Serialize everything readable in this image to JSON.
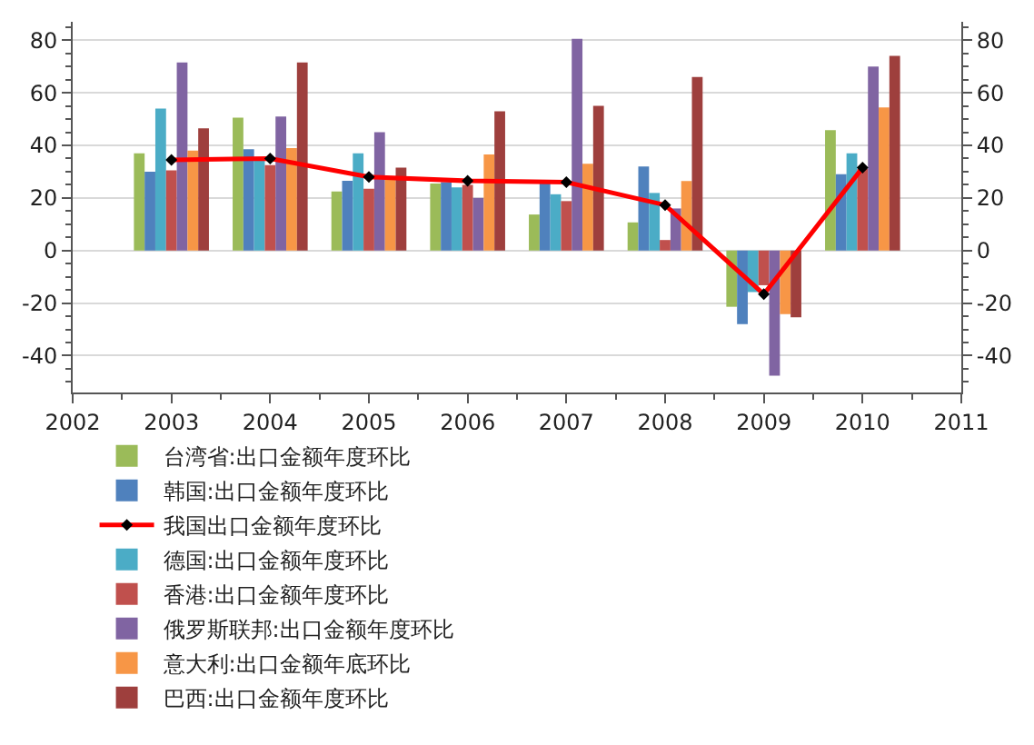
{
  "chart_data": {
    "type": "bar",
    "x": [
      2003,
      2004,
      2005,
      2006,
      2007,
      2008,
      2009,
      2010
    ],
    "series": [
      {
        "name": "台湾省:出口金额年度环比",
        "color": "#9bbb59",
        "values": [
          37,
          50.5,
          22.5,
          25.5,
          13.7,
          10.7,
          -21.4,
          45.8
        ]
      },
      {
        "name": "韩国:出口金额年度环比",
        "color": "#4f81bd",
        "values": [
          30,
          38.5,
          26.5,
          26,
          26,
          32,
          -28,
          29
        ]
      },
      {
        "name": "我国出口金额年度环比",
        "color": "#ff0000",
        "type": "line",
        "axis": "y2",
        "marker": "diamond",
        "values": [
          34.5,
          35,
          28,
          26.5,
          26,
          17.3,
          -16.6,
          31.5
        ]
      },
      {
        "name": "德国:出口金额年度环比",
        "color": "#4bacc6",
        "values": [
          54,
          35,
          37,
          24,
          21.4,
          21.9,
          -15.8,
          37
        ]
      },
      {
        "name": "香港:出口金额年度环比",
        "color": "#c0504d",
        "values": [
          30.5,
          32.5,
          23.5,
          25,
          18.8,
          4,
          -13.2,
          31
        ]
      },
      {
        "name": "俄罗斯联邦:出口金额年度环比",
        "color": "#8064a2",
        "values": [
          71.5,
          51,
          45,
          20,
          80.5,
          16,
          -47.6,
          70
        ]
      },
      {
        "name": "意大利:出口金额年底环比",
        "color": "#f79646",
        "values": [
          38,
          39,
          27.5,
          36.5,
          33,
          26.4,
          -24.2,
          54.4
        ]
      },
      {
        "name": "巴西:出口金额年度环比",
        "color": "#9e3f3d",
        "values": [
          46.5,
          71.5,
          31.5,
          53,
          55,
          66,
          -25.4,
          74
        ]
      }
    ],
    "xlim": [
      2002,
      2011
    ],
    "xticks": [
      2002,
      2003,
      2004,
      2005,
      2006,
      2007,
      2008,
      2009,
      2010,
      2011
    ],
    "ylim": [
      -54,
      87
    ],
    "yticks": [
      -40,
      -20,
      0,
      20,
      40,
      60,
      80
    ],
    "y2lim": [
      -54,
      87
    ],
    "y2ticks": [
      -40,
      -20,
      0,
      20,
      40,
      60,
      80
    ],
    "grid": "y",
    "legend": "bottom"
  }
}
